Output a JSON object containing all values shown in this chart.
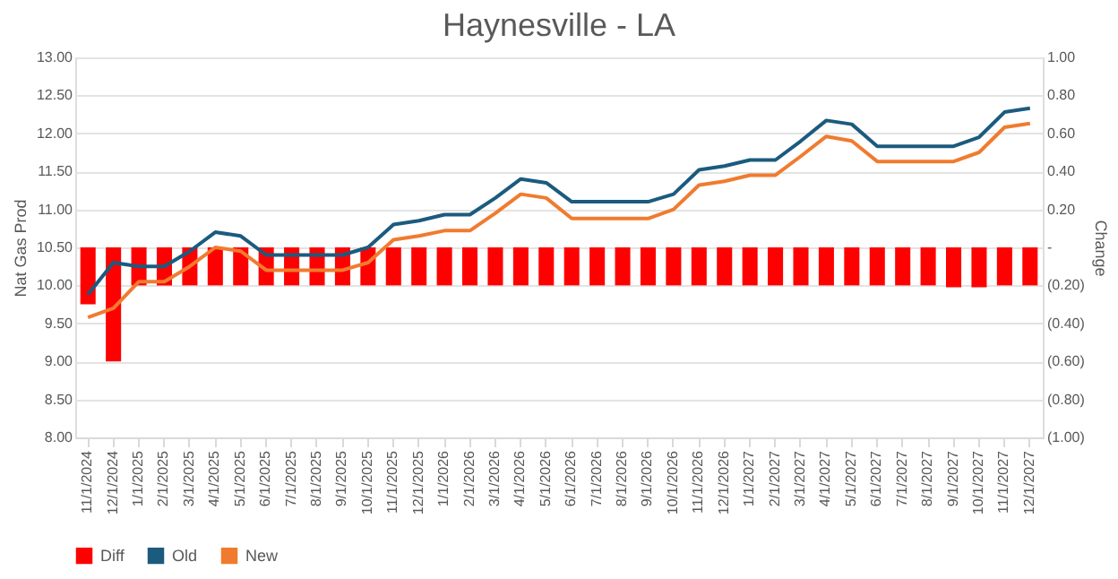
{
  "chart_data": {
    "type": "line",
    "title": "Haynesville - LA",
    "ylabel": "Nat Gas Prod",
    "y2label": "Change",
    "categories": [
      "11/1/2024",
      "12/1/2024",
      "1/1/2025",
      "2/1/2025",
      "3/1/2025",
      "4/1/2025",
      "5/1/2025",
      "6/1/2025",
      "7/1/2025",
      "8/1/2025",
      "9/1/2025",
      "10/1/2025",
      "11/1/2025",
      "12/1/2025",
      "1/1/2026",
      "2/1/2026",
      "3/1/2026",
      "4/1/2026",
      "5/1/2026",
      "6/1/2026",
      "7/1/2026",
      "8/1/2026",
      "9/1/2026",
      "10/1/2026",
      "11/1/2026",
      "12/1/2026",
      "1/1/2027",
      "2/1/2027",
      "3/1/2027",
      "4/1/2027",
      "5/1/2027",
      "6/1/2027",
      "7/1/2027",
      "8/1/2027",
      "9/1/2027",
      "10/1/2027",
      "11/1/2027",
      "12/1/2027"
    ],
    "series": [
      {
        "name": "Diff",
        "type": "bar",
        "axis": "y2",
        "color": "#ff0000",
        "values": [
          -0.3,
          -0.6,
          -0.2,
          -0.2,
          -0.2,
          -0.2,
          -0.2,
          -0.2,
          -0.2,
          -0.2,
          -0.2,
          -0.2,
          -0.2,
          -0.2,
          -0.2,
          -0.2,
          -0.2,
          -0.2,
          -0.2,
          -0.2,
          -0.2,
          -0.2,
          -0.2,
          -0.2,
          -0.2,
          -0.2,
          -0.2,
          -0.2,
          -0.2,
          -0.2,
          -0.2,
          -0.2,
          -0.2,
          -0.2,
          -0.21,
          -0.21,
          -0.2,
          -0.2
        ]
      },
      {
        "name": "Old",
        "color": "#1b5b7e",
        "values": [
          9.88,
          10.3,
          10.25,
          10.25,
          10.45,
          10.7,
          10.65,
          10.4,
          10.4,
          10.4,
          10.4,
          10.5,
          10.8,
          10.85,
          10.93,
          10.93,
          11.15,
          11.4,
          11.35,
          11.1,
          11.1,
          11.1,
          11.1,
          11.2,
          11.52,
          11.57,
          11.65,
          11.65,
          11.9,
          12.17,
          12.12,
          11.83,
          11.83,
          11.83,
          11.83,
          11.95,
          12.28,
          12.33
        ]
      },
      {
        "name": "New",
        "color": "#f07b2f",
        "values": [
          9.58,
          9.7,
          10.05,
          10.05,
          10.25,
          10.5,
          10.45,
          10.2,
          10.2,
          10.2,
          10.2,
          10.3,
          10.6,
          10.65,
          10.72,
          10.72,
          10.95,
          11.2,
          11.15,
          10.88,
          10.88,
          10.88,
          10.88,
          11.0,
          11.32,
          11.37,
          11.45,
          11.45,
          11.7,
          11.96,
          11.9,
          11.63,
          11.63,
          11.63,
          11.63,
          11.75,
          12.08,
          12.13
        ]
      }
    ],
    "ylim": [
      8,
      13
    ],
    "yticks": [
      {
        "value": 8,
        "label": "8.00"
      },
      {
        "value": 8.5,
        "label": "8.50"
      },
      {
        "value": 9,
        "label": "9.00"
      },
      {
        "value": 9.5,
        "label": "9.50"
      },
      {
        "value": 10,
        "label": "10.00"
      },
      {
        "value": 10.5,
        "label": "10.50"
      },
      {
        "value": 11,
        "label": "11.00"
      },
      {
        "value": 11.5,
        "label": "11.50"
      },
      {
        "value": 12,
        "label": "12.00"
      },
      {
        "value": 12.5,
        "label": "12.50"
      },
      {
        "value": 13,
        "label": "13.00"
      }
    ],
    "y2lim": [
      -1,
      1
    ],
    "y2ticks": [
      {
        "value": -1,
        "label": "(1.00)"
      },
      {
        "value": -0.8,
        "label": "(0.80)"
      },
      {
        "value": -0.6,
        "label": "(0.60)"
      },
      {
        "value": -0.4,
        "label": "(0.40)"
      },
      {
        "value": -0.2,
        "label": "(0.20)"
      },
      {
        "value": 0,
        "label": "-"
      },
      {
        "value": 0.2,
        "label": "0.20"
      },
      {
        "value": 0.4,
        "label": "0.40"
      },
      {
        "value": 0.6,
        "label": "0.60"
      },
      {
        "value": 0.8,
        "label": "0.80"
      },
      {
        "value": 1,
        "label": "1.00"
      }
    ],
    "grid": "y",
    "legend": "bottom"
  }
}
